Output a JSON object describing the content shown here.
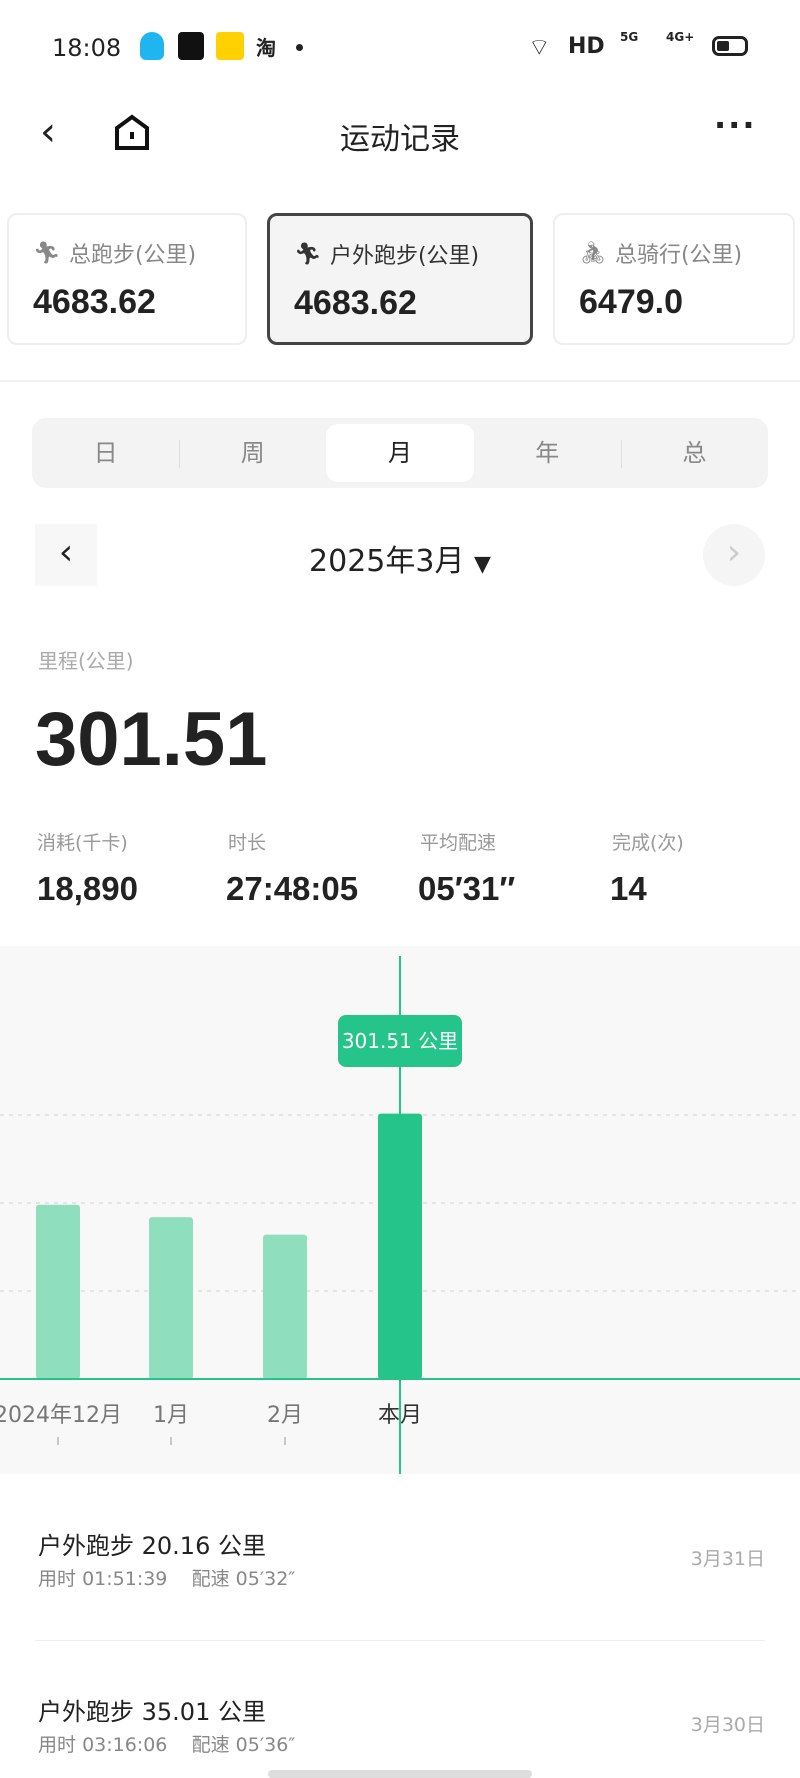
{
  "status_bar": {
    "time": "18:08",
    "network": "HD",
    "sig1": "5G",
    "sig2": "4G+"
  },
  "header": {
    "title": "运动记录"
  },
  "cards": [
    {
      "label": "总跑步(公里)",
      "value": "4683.62",
      "icon": "running-icon",
      "selected": false
    },
    {
      "label": "户外跑步(公里)",
      "value": "4683.62",
      "icon": "running-icon",
      "selected": true
    },
    {
      "label": "总骑行(公里)",
      "value": "6479.0",
      "icon": "cycling-icon",
      "selected": false
    }
  ],
  "period_tabs": [
    {
      "label": "日"
    },
    {
      "label": "周"
    },
    {
      "label": "月",
      "active": true
    },
    {
      "label": "年"
    },
    {
      "label": "总"
    }
  ],
  "date_selector": {
    "label": "2025年3月"
  },
  "summary": {
    "distance_label": "里程(公里)",
    "distance": "301.51",
    "stats": [
      {
        "label": "消耗(千卡)",
        "value": "18,890"
      },
      {
        "label": "时长",
        "value": "27:48:05"
      },
      {
        "label": "平均配速",
        "value": "05′31″"
      },
      {
        "label": "完成(次)",
        "value": "14"
      }
    ]
  },
  "chart_data": {
    "type": "bar",
    "categories": [
      "2024年12月",
      "1月",
      "2月",
      "本月"
    ],
    "values": [
      198,
      184,
      164,
      301.51
    ],
    "gridlines": [
      100,
      200,
      300
    ],
    "selected_index": 3,
    "tooltip": "301.51 公里",
    "colors": {
      "bar": "#8fdfbf",
      "selected": "#24c48a"
    }
  },
  "activities": [
    {
      "title": "户外跑步 20.16 公里",
      "duration_label": "用时",
      "duration": "01:51:39",
      "pace_label": "配速",
      "pace": "05′32″",
      "date": "3月31日"
    },
    {
      "title": "户外跑步 35.01 公里",
      "duration_label": "用时",
      "duration": "03:16:06",
      "pace_label": "配速",
      "pace": "05′36″",
      "date": "3月30日"
    }
  ]
}
